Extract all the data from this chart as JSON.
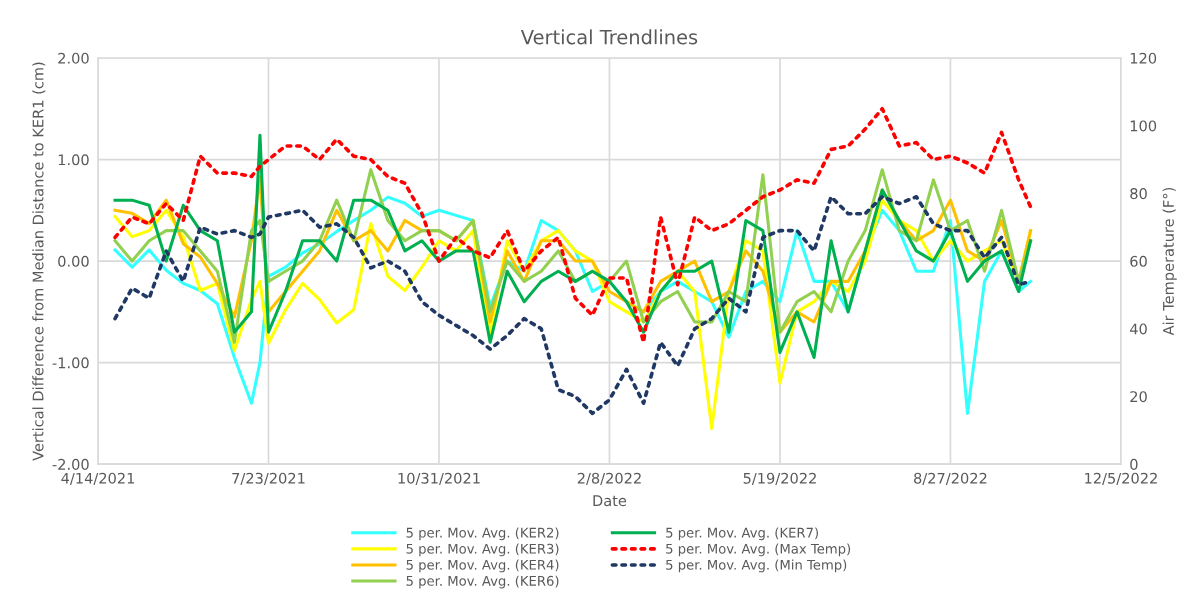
{
  "chart_data": {
    "type": "line",
    "title": "Vertical Trendlines",
    "xlabel": "Date",
    "ylabel": "Vertical Difference from Median Distance to KER1 (cm)",
    "y2label": "Air Temperature (F°)",
    "x": [
      "2021-04-24",
      "2021-05-04",
      "2021-05-14",
      "2021-05-24",
      "2021-06-03",
      "2021-06-13",
      "2021-06-23",
      "2021-07-03",
      "2021-07-13",
      "2021-07-18",
      "2021-07-23",
      "2021-08-02",
      "2021-08-12",
      "2021-08-22",
      "2021-09-01",
      "2021-09-11",
      "2021-09-21",
      "2021-10-01",
      "2021-10-11",
      "2021-10-21",
      "2021-10-31",
      "2021-11-10",
      "2021-11-20",
      "2021-11-30",
      "2021-12-10",
      "2021-12-20",
      "2021-12-30",
      "2022-01-09",
      "2022-01-19",
      "2022-01-29",
      "2022-02-08",
      "2022-02-18",
      "2022-02-28",
      "2022-03-10",
      "2022-03-20",
      "2022-03-30",
      "2022-04-09",
      "2022-04-19",
      "2022-04-29",
      "2022-05-09",
      "2022-05-19",
      "2022-05-29",
      "2022-06-08",
      "2022-06-18",
      "2022-06-28",
      "2022-07-08",
      "2022-07-18",
      "2022-07-28",
      "2022-08-07",
      "2022-08-17",
      "2022-08-27",
      "2022-09-06",
      "2022-09-16",
      "2022-09-26",
      "2022-10-06",
      "2022-10-13"
    ],
    "xlim": [
      "2021-04-14",
      "2022-12-05"
    ],
    "xticks": [
      {
        "value": "2021-04-14",
        "label": "4/14/2021"
      },
      {
        "value": "2021-07-23",
        "label": "7/23/2021"
      },
      {
        "value": "2021-10-31",
        "label": "10/31/2021"
      },
      {
        "value": "2022-02-08",
        "label": "2/8/2022"
      },
      {
        "value": "2022-05-19",
        "label": "5/19/2022"
      },
      {
        "value": "2022-08-27",
        "label": "8/27/2022"
      },
      {
        "value": "2022-12-05",
        "label": "12/5/2022"
      }
    ],
    "ylim": [
      -2,
      2
    ],
    "yticks": [
      {
        "value": -2,
        "label": "-2.00"
      },
      {
        "value": -1,
        "label": "-1.00"
      },
      {
        "value": 0,
        "label": "0.00"
      },
      {
        "value": 1,
        "label": "1.00"
      },
      {
        "value": 2,
        "label": "2.00"
      }
    ],
    "y2lim": [
      0,
      120
    ],
    "y2ticks": [
      0,
      20,
      40,
      60,
      80,
      100,
      120
    ],
    "grid": true,
    "legend": "bottom",
    "series": [
      {
        "name": "5 per. Mov. Avg. (KER2)",
        "color": "#33ffff",
        "line_style": "solid",
        "values": [
          0.11,
          -0.06,
          0.11,
          -0.09,
          -0.22,
          -0.29,
          -0.42,
          -0.95,
          -1.4,
          -1.0,
          -0.15,
          -0.06,
          0.08,
          0.17,
          0.29,
          0.4,
          0.5,
          0.63,
          0.57,
          0.44,
          0.5,
          0.45,
          0.4,
          -0.45,
          0.0,
          -0.1,
          0.4,
          0.3,
          0.1,
          -0.3,
          -0.2,
          -0.4,
          -0.5,
          -0.3,
          -0.2,
          -0.3,
          -0.4,
          -0.75,
          -0.3,
          -0.2,
          -0.4,
          0.3,
          -0.2,
          -0.2,
          -0.5,
          0.1,
          0.5,
          0.3,
          -0.1,
          -0.1,
          0.4,
          -1.5,
          -0.2,
          0.1,
          -0.3,
          -0.2
        ]
      },
      {
        "name": "5 per. Mov. Avg. (KER3)",
        "color": "#ffff00",
        "line_style": "solid",
        "values": [
          0.44,
          0.24,
          0.3,
          0.5,
          0.24,
          -0.29,
          -0.22,
          -0.88,
          -0.38,
          -0.2,
          -0.81,
          -0.48,
          -0.22,
          -0.38,
          -0.61,
          -0.48,
          0.37,
          -0.15,
          -0.29,
          -0.06,
          0.2,
          0.1,
          0.3,
          -0.71,
          0.2,
          -0.1,
          0.2,
          0.3,
          0.1,
          0.0,
          -0.4,
          -0.5,
          -0.6,
          -0.3,
          -0.1,
          -0.3,
          -1.65,
          -0.3,
          0.2,
          0.1,
          -1.2,
          -0.5,
          -0.4,
          -0.2,
          -0.3,
          0.0,
          0.6,
          0.4,
          0.3,
          0.0,
          0.2,
          0.0,
          0.1,
          0.2,
          -0.2,
          0.3
        ]
      },
      {
        "name": "5 per. Mov. Avg. (KER4)",
        "color": "#ffc000",
        "line_style": "solid",
        "values": [
          0.5,
          0.47,
          0.37,
          0.6,
          0.17,
          0.04,
          -0.22,
          -0.55,
          0.2,
          0.83,
          -0.5,
          -0.3,
          -0.1,
          0.1,
          0.5,
          0.2,
          0.3,
          0.1,
          0.4,
          0.3,
          0.3,
          0.2,
          0.4,
          -0.6,
          0.1,
          -0.2,
          0.2,
          0.2,
          0.0,
          0.0,
          -0.3,
          -0.4,
          -0.5,
          -0.2,
          -0.1,
          0.0,
          -0.4,
          -0.3,
          0.1,
          -0.1,
          -0.7,
          -0.5,
          -0.6,
          -0.2,
          -0.2,
          0.1,
          0.7,
          0.4,
          0.2,
          0.3,
          0.6,
          0.1,
          0.0,
          0.4,
          -0.2,
          0.3
        ]
      },
      {
        "name": "5 per. Mov. Avg. (KER6)",
        "color": "#92d050",
        "line_style": "solid",
        "values": [
          0.2,
          0.0,
          0.2,
          0.3,
          0.3,
          0.1,
          -0.1,
          -0.8,
          0.3,
          0.4,
          -0.2,
          -0.1,
          0.0,
          0.2,
          0.6,
          0.2,
          0.9,
          0.4,
          0.2,
          0.3,
          0.3,
          0.2,
          0.4,
          -0.5,
          0.0,
          -0.2,
          -0.1,
          0.1,
          -0.2,
          -0.1,
          -0.2,
          0.0,
          -0.6,
          -0.4,
          -0.3,
          -0.6,
          -0.6,
          -0.3,
          -0.4,
          0.85,
          -0.7,
          -0.4,
          -0.3,
          -0.5,
          0.0,
          0.3,
          0.9,
          0.3,
          0.2,
          0.8,
          0.3,
          0.4,
          -0.1,
          0.5,
          -0.2,
          0.2
        ]
      },
      {
        "name": "5 per. Mov. Avg. (KER7)",
        "color": "#00b050",
        "line_style": "solid",
        "values": [
          0.6,
          0.6,
          0.55,
          0.0,
          0.55,
          0.3,
          0.2,
          -0.7,
          -0.5,
          1.24,
          -0.7,
          -0.3,
          0.2,
          0.2,
          0.0,
          0.6,
          0.6,
          0.5,
          0.1,
          0.2,
          0.0,
          0.1,
          0.1,
          -0.8,
          -0.1,
          -0.4,
          -0.2,
          -0.1,
          -0.2,
          -0.1,
          -0.2,
          -0.4,
          -0.7,
          -0.3,
          -0.1,
          -0.1,
          0.0,
          -0.7,
          0.4,
          0.3,
          -0.9,
          -0.5,
          -0.95,
          0.2,
          -0.5,
          0.1,
          0.7,
          0.4,
          0.1,
          0.0,
          0.3,
          -0.2,
          0.0,
          0.1,
          -0.3,
          0.2
        ]
      },
      {
        "name": "5 per. Mov. Avg. (Max Temp)",
        "color": "#ff0000",
        "line_style": "dotted",
        "axis": "y2",
        "values": [
          67,
          73,
          71,
          77,
          72,
          91,
          86,
          86,
          85,
          88,
          90,
          94,
          94,
          90,
          96,
          91,
          90,
          85,
          83,
          74,
          60,
          67,
          63,
          61,
          69,
          57,
          63,
          67,
          49,
          44,
          55,
          55,
          36,
          73,
          53,
          73,
          69,
          71,
          75,
          79,
          81,
          84,
          83,
          93,
          94,
          99,
          105,
          94,
          95,
          90,
          91,
          89,
          86,
          98,
          84,
          76
        ]
      },
      {
        "name": "5 per. Mov. Avg. (Min Temp)",
        "color": "#203864",
        "line_style": "dotted",
        "axis": "y2",
        "values": [
          43,
          52,
          49,
          63,
          54,
          70,
          68,
          69,
          67,
          68,
          73,
          74,
          75,
          70,
          71,
          67,
          58,
          60,
          57,
          48,
          44,
          41,
          38,
          34,
          38,
          43,
          40,
          22,
          20,
          15,
          19,
          28,
          18,
          36,
          29,
          40,
          43,
          49,
          45,
          67,
          69,
          69,
          63,
          79,
          74,
          74,
          79,
          77,
          79,
          71,
          69,
          69,
          61,
          67,
          53,
          54
        ]
      }
    ]
  }
}
